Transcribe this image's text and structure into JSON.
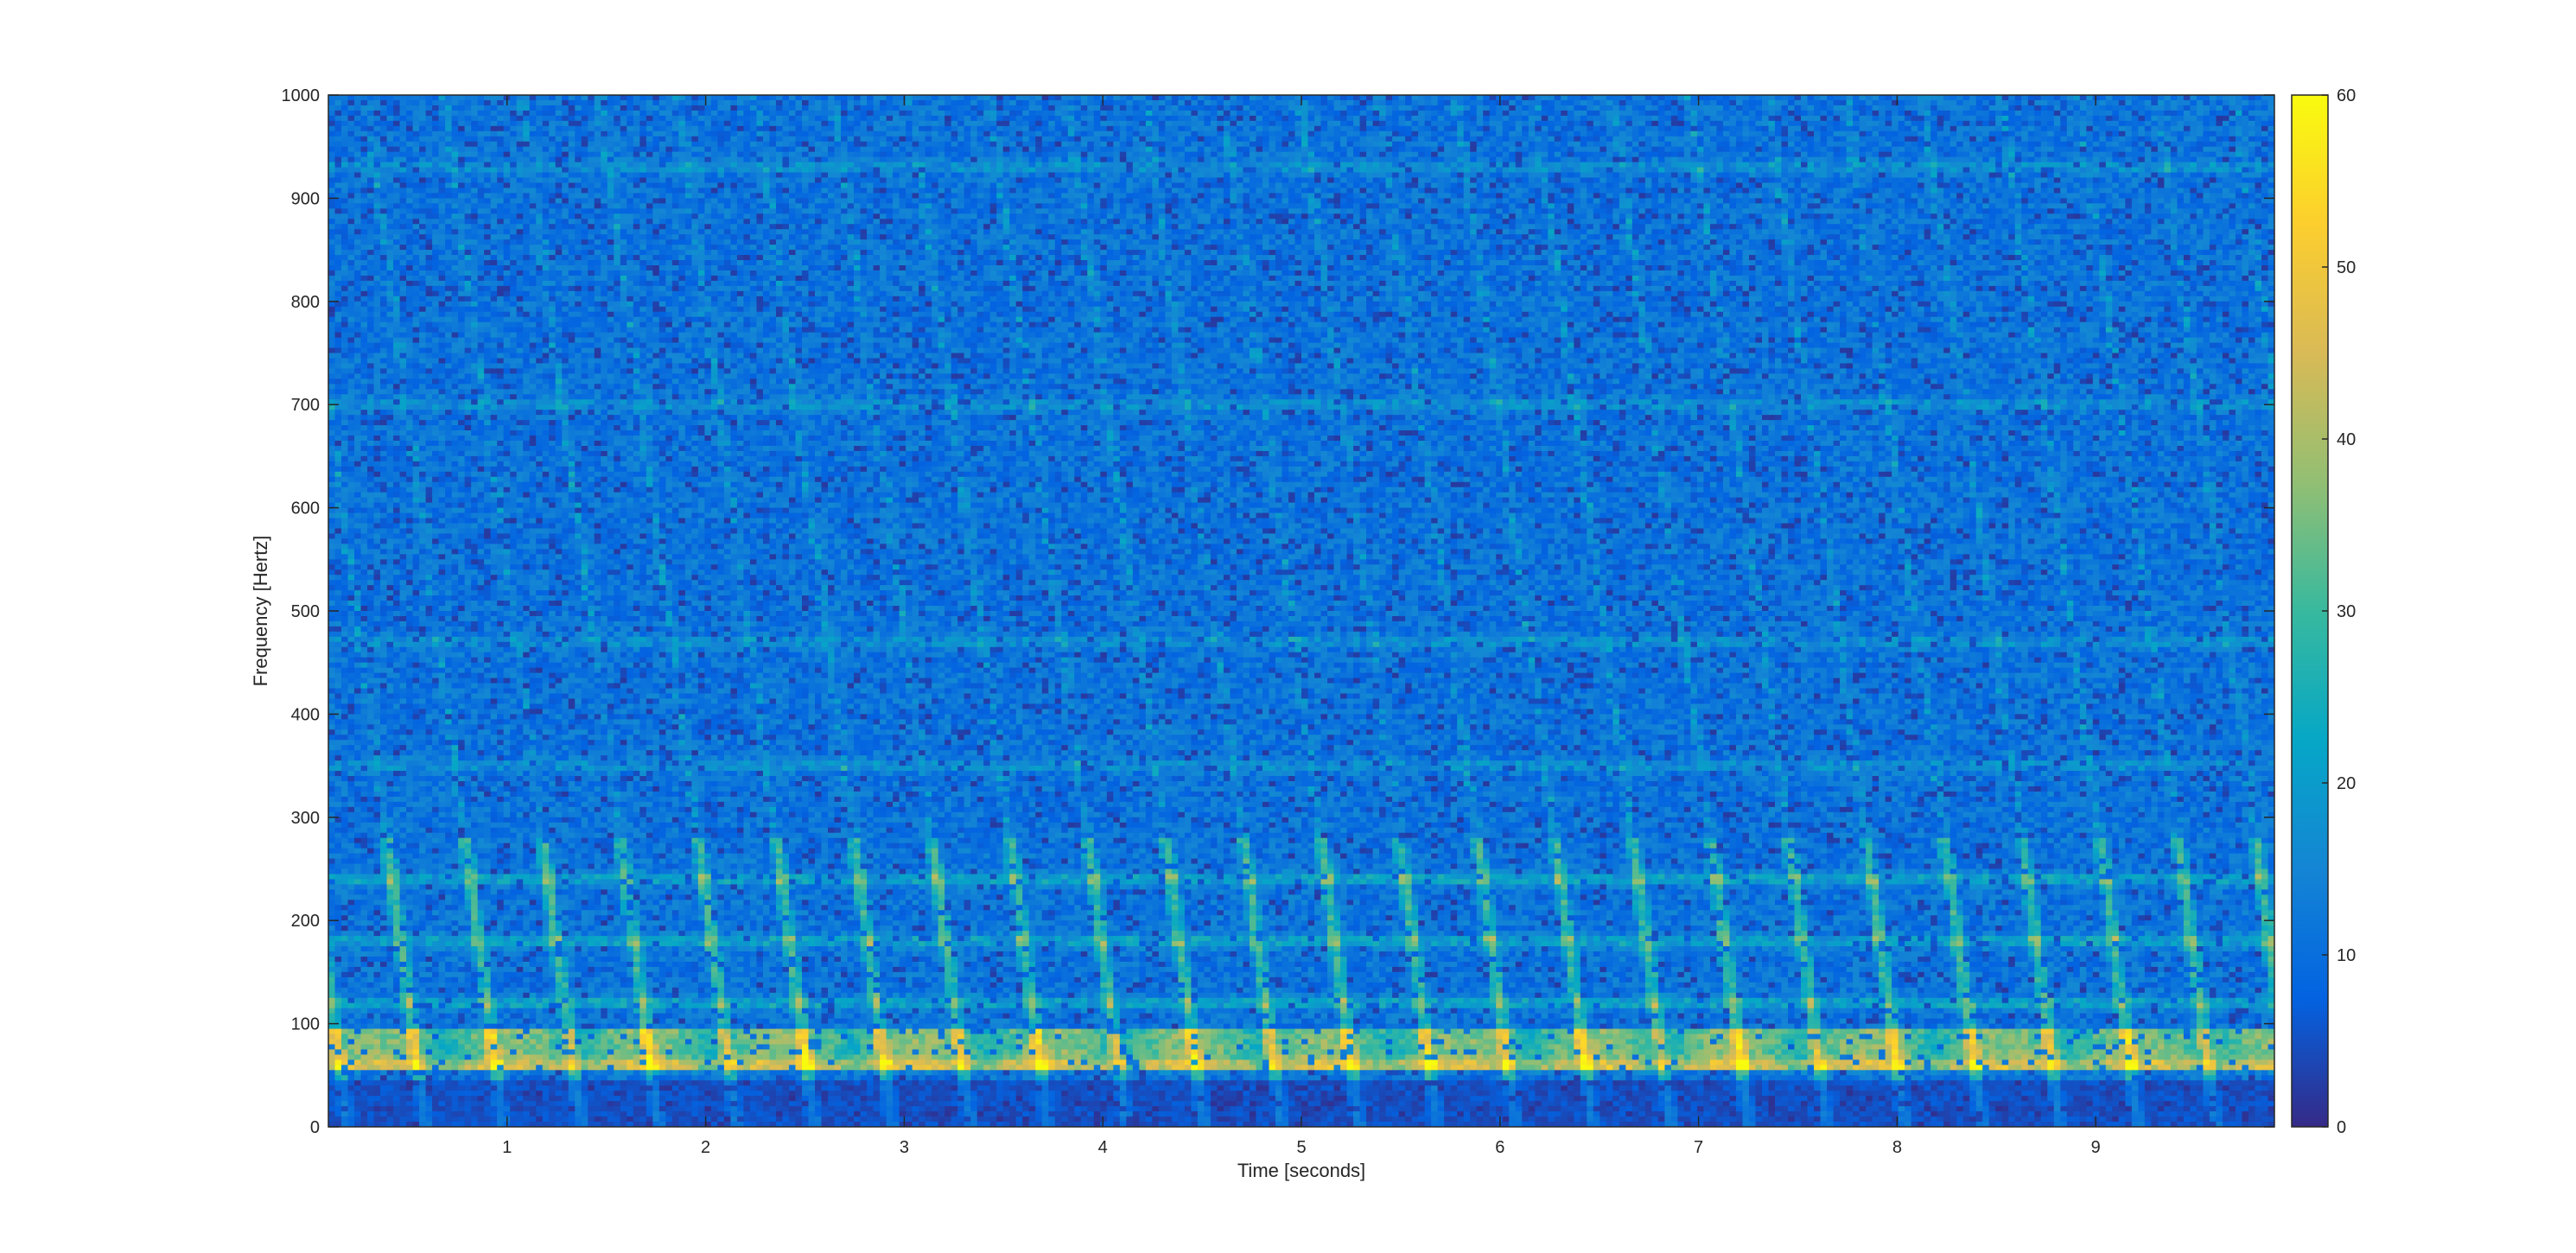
{
  "chart_data": {
    "type": "heatmap",
    "title": "",
    "xlabel": "Time [seconds]",
    "ylabel": "Frequency [Hertz]",
    "xlim": [
      0.1,
      9.9
    ],
    "ylim": [
      0,
      1000
    ],
    "x_ticks": [
      1,
      2,
      3,
      4,
      5,
      6,
      7,
      8,
      9
    ],
    "y_ticks": [
      0,
      100,
      200,
      300,
      400,
      500,
      600,
      700,
      800,
      900,
      1000
    ],
    "colorbar": {
      "colormap": "parula",
      "clim": [
        0,
        60
      ],
      "ticks": [
        0,
        10,
        20,
        30,
        40,
        50,
        60
      ]
    },
    "colormap_stops": [
      "#352a87",
      "#0363e1",
      "#1485d4",
      "#06a7c6",
      "#38b99e",
      "#92bf73",
      "#d9ba56",
      "#fcce2e",
      "#f9fb0e"
    ],
    "harmonics_hz": [
      60,
      120,
      180,
      240,
      350,
      470,
      700,
      930
    ],
    "bright_band_hz": [
      55,
      95
    ],
    "grid": false,
    "legend": "none"
  }
}
